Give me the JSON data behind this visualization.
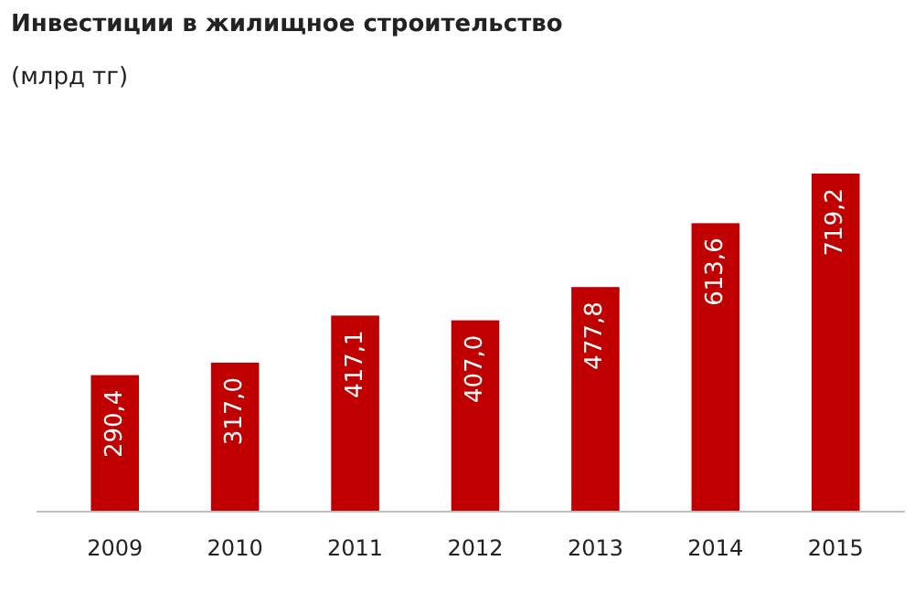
{
  "chart_data": {
    "type": "bar",
    "title": "Инвестиции  в жилищное  строительство",
    "subtitle": "(млрд тг)",
    "categories": [
      "2009",
      "2010",
      "2011",
      "2012",
      "2013",
      "2014",
      "2015"
    ],
    "values": [
      290.4,
      317.0,
      417.1,
      407.0,
      477.8,
      613.6,
      719.2
    ],
    "value_labels": [
      "290,4",
      "317,0",
      "417,1",
      "407,0",
      "477,8",
      "613,6",
      "719,2"
    ],
    "color": "#c00000"
  }
}
